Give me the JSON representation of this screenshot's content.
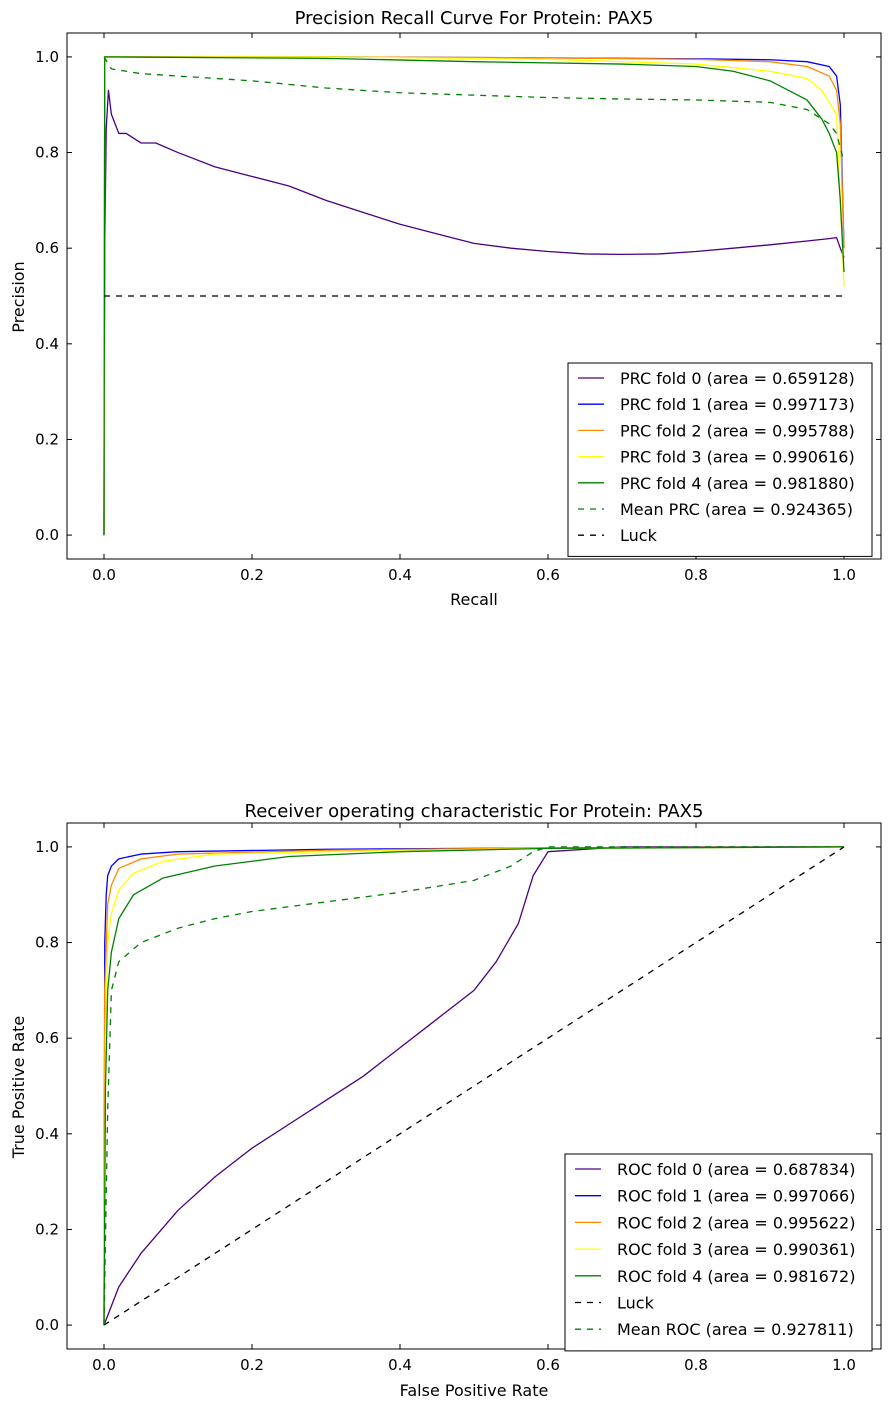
{
  "chart_data": [
    {
      "type": "line",
      "title": "Precision Recall Curve For Protein: PAX5",
      "xlabel": "Recall",
      "ylabel": "Precision",
      "xlim": [
        -0.05,
        1.05
      ],
      "ylim": [
        -0.05,
        1.05
      ],
      "xticks": [
        0.0,
        0.2,
        0.4,
        0.6,
        0.8,
        1.0
      ],
      "yticks": [
        0.0,
        0.2,
        0.4,
        0.6,
        0.8,
        1.0
      ],
      "xtick_labels": [
        "0.0",
        "0.2",
        "0.4",
        "0.6",
        "0.8",
        "1.0"
      ],
      "ytick_labels": [
        "0.0",
        "0.2",
        "0.4",
        "0.6",
        "0.8",
        "1.0"
      ],
      "grid": false,
      "legend_position": "lower-right",
      "series": [
        {
          "name": "PRC fold 0 (area = 0.659128)",
          "color": "#4b0082",
          "style": "solid",
          "points": [
            [
              0,
              0
            ],
            [
              0.001,
              0.6
            ],
            [
              0.003,
              0.85
            ],
            [
              0.006,
              0.93
            ],
            [
              0.01,
              0.88
            ],
            [
              0.015,
              0.86
            ],
            [
              0.02,
              0.84
            ],
            [
              0.03,
              0.84
            ],
            [
              0.05,
              0.82
            ],
            [
              0.07,
              0.82
            ],
            [
              0.1,
              0.8
            ],
            [
              0.15,
              0.77
            ],
            [
              0.2,
              0.75
            ],
            [
              0.25,
              0.73
            ],
            [
              0.3,
              0.7
            ],
            [
              0.35,
              0.675
            ],
            [
              0.4,
              0.65
            ],
            [
              0.45,
              0.63
            ],
            [
              0.5,
              0.61
            ],
            [
              0.55,
              0.6
            ],
            [
              0.6,
              0.593
            ],
            [
              0.65,
              0.588
            ],
            [
              0.7,
              0.587
            ],
            [
              0.75,
              0.588
            ],
            [
              0.8,
              0.593
            ],
            [
              0.85,
              0.6
            ],
            [
              0.9,
              0.607
            ],
            [
              0.95,
              0.615
            ],
            [
              0.98,
              0.62
            ],
            [
              0.99,
              0.622
            ],
            [
              0.995,
              0.6
            ],
            [
              1.0,
              0.58
            ]
          ]
        },
        {
          "name": "PRC fold 1 (area = 0.997173)",
          "color": "#0000ff",
          "style": "solid",
          "points": [
            [
              0,
              0
            ],
            [
              0.001,
              1.0
            ],
            [
              0.3,
              1.0
            ],
            [
              0.6,
              0.998
            ],
            [
              0.8,
              0.996
            ],
            [
              0.9,
              0.994
            ],
            [
              0.95,
              0.99
            ],
            [
              0.98,
              0.98
            ],
            [
              0.99,
              0.96
            ],
            [
              0.995,
              0.9
            ],
            [
              1.0,
              0.6
            ]
          ]
        },
        {
          "name": "PRC fold 2 (area = 0.995788)",
          "color": "#ff8c00",
          "style": "solid",
          "points": [
            [
              0,
              0
            ],
            [
              0.001,
              1.0
            ],
            [
              0.3,
              1.0
            ],
            [
              0.6,
              0.998
            ],
            [
              0.8,
              0.995
            ],
            [
              0.9,
              0.99
            ],
            [
              0.95,
              0.98
            ],
            [
              0.98,
              0.96
            ],
            [
              0.99,
              0.93
            ],
            [
              0.995,
              0.86
            ],
            [
              1.0,
              0.6
            ]
          ]
        },
        {
          "name": "PRC fold 3 (area = 0.990616)",
          "color": "#ffff00",
          "style": "solid",
          "points": [
            [
              0,
              0
            ],
            [
              0.001,
              1.0
            ],
            [
              0.3,
              1.0
            ],
            [
              0.6,
              0.995
            ],
            [
              0.8,
              0.985
            ],
            [
              0.9,
              0.97
            ],
            [
              0.95,
              0.955
            ],
            [
              0.97,
              0.93
            ],
            [
              0.99,
              0.88
            ],
            [
              0.995,
              0.7
            ],
            [
              1.0,
              0.52
            ]
          ]
        },
        {
          "name": "PRC fold 4 (area = 0.981880)",
          "color": "#008000",
          "style": "solid",
          "points": [
            [
              0,
              0
            ],
            [
              0.001,
              1.0
            ],
            [
              0.3,
              0.997
            ],
            [
              0.5,
              0.99
            ],
            [
              0.7,
              0.985
            ],
            [
              0.8,
              0.98
            ],
            [
              0.85,
              0.97
            ],
            [
              0.9,
              0.95
            ],
            [
              0.95,
              0.91
            ],
            [
              0.97,
              0.87
            ],
            [
              0.98,
              0.84
            ],
            [
              0.99,
              0.8
            ],
            [
              0.995,
              0.7
            ],
            [
              1.0,
              0.55
            ]
          ]
        },
        {
          "name": "Mean PRC (area = 0.924365)",
          "color": "#008000",
          "style": "dashed",
          "points": [
            [
              0,
              1.0
            ],
            [
              0.01,
              0.975
            ],
            [
              0.05,
              0.965
            ],
            [
              0.1,
              0.96
            ],
            [
              0.2,
              0.95
            ],
            [
              0.3,
              0.935
            ],
            [
              0.4,
              0.925
            ],
            [
              0.5,
              0.92
            ],
            [
              0.6,
              0.915
            ],
            [
              0.7,
              0.912
            ],
            [
              0.8,
              0.91
            ],
            [
              0.9,
              0.905
            ],
            [
              0.95,
              0.89
            ],
            [
              0.98,
              0.86
            ],
            [
              0.99,
              0.84
            ],
            [
              1.0,
              0.78
            ]
          ]
        },
        {
          "name": "Luck",
          "color": "#000000",
          "style": "dashed",
          "points": [
            [
              0,
              0.5
            ],
            [
              1.0,
              0.5
            ]
          ]
        }
      ]
    },
    {
      "type": "line",
      "title": "Receiver operating characteristic For Protein: PAX5",
      "xlabel": "False Positive Rate",
      "ylabel": "True Positive Rate",
      "xlim": [
        -0.05,
        1.05
      ],
      "ylim": [
        -0.05,
        1.05
      ],
      "xticks": [
        0.0,
        0.2,
        0.4,
        0.6,
        0.8,
        1.0
      ],
      "yticks": [
        0.0,
        0.2,
        0.4,
        0.6,
        0.8,
        1.0
      ],
      "xtick_labels": [
        "0.0",
        "0.2",
        "0.4",
        "0.6",
        "0.8",
        "1.0"
      ],
      "ytick_labels": [
        "0.0",
        "0.2",
        "0.4",
        "0.6",
        "0.8",
        "1.0"
      ],
      "grid": false,
      "legend_position": "lower-right",
      "series": [
        {
          "name": "ROC fold 0 (area = 0.687834)",
          "color": "#4b0082",
          "style": "solid",
          "points": [
            [
              0,
              0
            ],
            [
              0.01,
              0.04
            ],
            [
              0.02,
              0.08
            ],
            [
              0.05,
              0.15
            ],
            [
              0.1,
              0.24
            ],
            [
              0.15,
              0.31
            ],
            [
              0.2,
              0.37
            ],
            [
              0.25,
              0.42
            ],
            [
              0.3,
              0.47
            ],
            [
              0.35,
              0.52
            ],
            [
              0.4,
              0.58
            ],
            [
              0.45,
              0.64
            ],
            [
              0.5,
              0.7
            ],
            [
              0.53,
              0.76
            ],
            [
              0.56,
              0.84
            ],
            [
              0.58,
              0.94
            ],
            [
              0.6,
              0.99
            ],
            [
              0.7,
              1.0
            ],
            [
              1.0,
              1.0
            ]
          ]
        },
        {
          "name": "ROC fold 1 (area = 0.997066)",
          "color": "#0000ff",
          "style": "solid",
          "points": [
            [
              0,
              0
            ],
            [
              0.001,
              0.8
            ],
            [
              0.003,
              0.9
            ],
            [
              0.005,
              0.94
            ],
            [
              0.01,
              0.96
            ],
            [
              0.02,
              0.975
            ],
            [
              0.05,
              0.985
            ],
            [
              0.1,
              0.99
            ],
            [
              0.3,
              0.995
            ],
            [
              0.6,
              0.998
            ],
            [
              1.0,
              1.0
            ]
          ]
        },
        {
          "name": "ROC fold 2 (area = 0.995622)",
          "color": "#ff8c00",
          "style": "solid",
          "points": [
            [
              0,
              0
            ],
            [
              0.001,
              0.7
            ],
            [
              0.005,
              0.88
            ],
            [
              0.01,
              0.92
            ],
            [
              0.02,
              0.955
            ],
            [
              0.05,
              0.975
            ],
            [
              0.1,
              0.985
            ],
            [
              0.3,
              0.993
            ],
            [
              0.6,
              0.998
            ],
            [
              1.0,
              1.0
            ]
          ]
        },
        {
          "name": "ROC fold 3 (area = 0.990361)",
          "color": "#ffff00",
          "style": "solid",
          "points": [
            [
              0,
              0
            ],
            [
              0.002,
              0.6
            ],
            [
              0.005,
              0.8
            ],
            [
              0.01,
              0.86
            ],
            [
              0.02,
              0.91
            ],
            [
              0.04,
              0.945
            ],
            [
              0.08,
              0.97
            ],
            [
              0.15,
              0.985
            ],
            [
              0.3,
              0.99
            ],
            [
              0.6,
              0.997
            ],
            [
              1.0,
              1.0
            ]
          ]
        },
        {
          "name": "ROC fold 4 (area = 0.981672)",
          "color": "#008000",
          "style": "solid",
          "points": [
            [
              0,
              0
            ],
            [
              0.002,
              0.5
            ],
            [
              0.005,
              0.7
            ],
            [
              0.01,
              0.78
            ],
            [
              0.02,
              0.85
            ],
            [
              0.04,
              0.9
            ],
            [
              0.08,
              0.935
            ],
            [
              0.15,
              0.96
            ],
            [
              0.25,
              0.98
            ],
            [
              0.4,
              0.99
            ],
            [
              0.6,
              0.997
            ],
            [
              1.0,
              1.0
            ]
          ]
        },
        {
          "name": "Luck",
          "color": "#000000",
          "style": "dashed",
          "points": [
            [
              0,
              0
            ],
            [
              1.0,
              1.0
            ]
          ]
        },
        {
          "name": "Mean ROC (area = 0.927811)",
          "color": "#008000",
          "style": "dashed",
          "points": [
            [
              0,
              0
            ],
            [
              0.005,
              0.45
            ],
            [
              0.01,
              0.7
            ],
            [
              0.02,
              0.76
            ],
            [
              0.05,
              0.8
            ],
            [
              0.1,
              0.83
            ],
            [
              0.15,
              0.85
            ],
            [
              0.2,
              0.865
            ],
            [
              0.3,
              0.885
            ],
            [
              0.4,
              0.905
            ],
            [
              0.5,
              0.93
            ],
            [
              0.55,
              0.96
            ],
            [
              0.58,
              0.99
            ],
            [
              0.6,
              1.0
            ],
            [
              1.0,
              1.0
            ]
          ]
        }
      ]
    }
  ]
}
